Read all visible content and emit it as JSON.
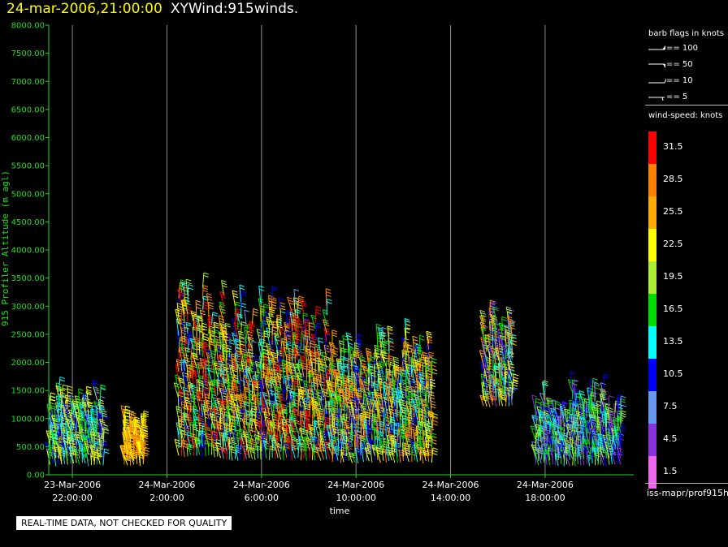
{
  "header": {
    "timestamp": "24-mar-2006,21:00:00",
    "title": "XYWind:915winds."
  },
  "colors": {
    "background": "#000000",
    "axis_y": "#22dd22",
    "axis_x": "#ffffff",
    "timestamp": "#ffff00",
    "gridline": "#8c8c8c"
  },
  "chart_data": {
    "type": "scatter",
    "xlabel": "time",
    "ylabel": "915 Profiler Altitude (m agl)",
    "ylim": [
      0,
      8000
    ],
    "y_ticks": [
      "8000.00",
      "7500.00",
      "7000.00",
      "6500.00",
      "6000.00",
      "5500.00",
      "5000.00",
      "4500.00",
      "4000.00",
      "3500.00",
      "3000.00",
      "2500.00",
      "2000.00",
      "1500.00",
      "1000.00",
      "500.00",
      "0.00"
    ],
    "x_ticks": [
      {
        "hour": 1,
        "date": "23-Mar-2006",
        "time": "22:00:00"
      },
      {
        "hour": 5,
        "date": "24-Mar-2006",
        "time": "2:00:00"
      },
      {
        "hour": 9,
        "date": "24-Mar-2006",
        "time": "6:00:00"
      },
      {
        "hour": 13,
        "date": "24-Mar-2006",
        "time": "10:00:00"
      },
      {
        "hour": 17,
        "date": "24-Mar-2006",
        "time": "14:00:00"
      },
      {
        "hour": 21,
        "date": "24-Mar-2006",
        "time": "18:00:00"
      }
    ],
    "xlim_hours_from_21Z": [
      0,
      24.75
    ],
    "grid": true,
    "marks": "wind barbs colored by wind speed",
    "clusters": [
      {
        "t_start": 0.05,
        "t_end": 2.3,
        "alt_min": 150,
        "alt_max": 1550,
        "speed_min": 7,
        "speed_max": 24
      },
      {
        "t_start": 3.2,
        "t_end": 4.0,
        "alt_min": 150,
        "alt_max": 1000,
        "speed_min": 21,
        "speed_max": 30
      },
      {
        "t_start": 5.5,
        "t_end": 7.4,
        "alt_min": 300,
        "alt_max": 3550,
        "speed_min": 10,
        "speed_max": 34
      },
      {
        "t_start": 7.4,
        "t_end": 12.0,
        "alt_min": 250,
        "alt_max": 3250,
        "speed_min": 8,
        "speed_max": 33
      },
      {
        "t_start": 12.0,
        "t_end": 16.2,
        "alt_min": 200,
        "alt_max": 2700,
        "speed_min": 8,
        "speed_max": 30
      },
      {
        "t_start": 18.4,
        "t_end": 19.6,
        "alt_min": 1200,
        "alt_max": 2950,
        "speed_min": 3,
        "speed_max": 29
      },
      {
        "t_start": 20.6,
        "t_end": 24.2,
        "alt_min": 150,
        "alt_max": 1600,
        "speed_min": 3,
        "speed_max": 21
      }
    ]
  },
  "legend": {
    "barb_title": "barb flags in knots",
    "barbs": [
      "== 100",
      "== 50",
      "== 10",
      "== 5"
    ],
    "speed_title": "wind-speed: knots",
    "speed_levels": [
      {
        "label": "31.5",
        "color": "#ff0000"
      },
      {
        "label": "28.5",
        "color": "#ff8000"
      },
      {
        "label": "25.5",
        "color": "#ffaa00"
      },
      {
        "label": "22.5",
        "color": "#ffff00"
      },
      {
        "label": "19.5",
        "color": "#aaee33"
      },
      {
        "label": "16.5",
        "color": "#00dd00"
      },
      {
        "label": "13.5",
        "color": "#00ffff"
      },
      {
        "label": "10.5",
        "color": "#0000ff"
      },
      {
        "label": "7.5",
        "color": "#6699ee"
      },
      {
        "label": "4.5",
        "color": "#8833dd"
      },
      {
        "label": "1.5",
        "color": "#ee66ee"
      }
    ],
    "source": "iss-mapr/prof915h"
  },
  "qc_note": "REAL-TIME DATA, NOT CHECKED FOR QUALITY"
}
